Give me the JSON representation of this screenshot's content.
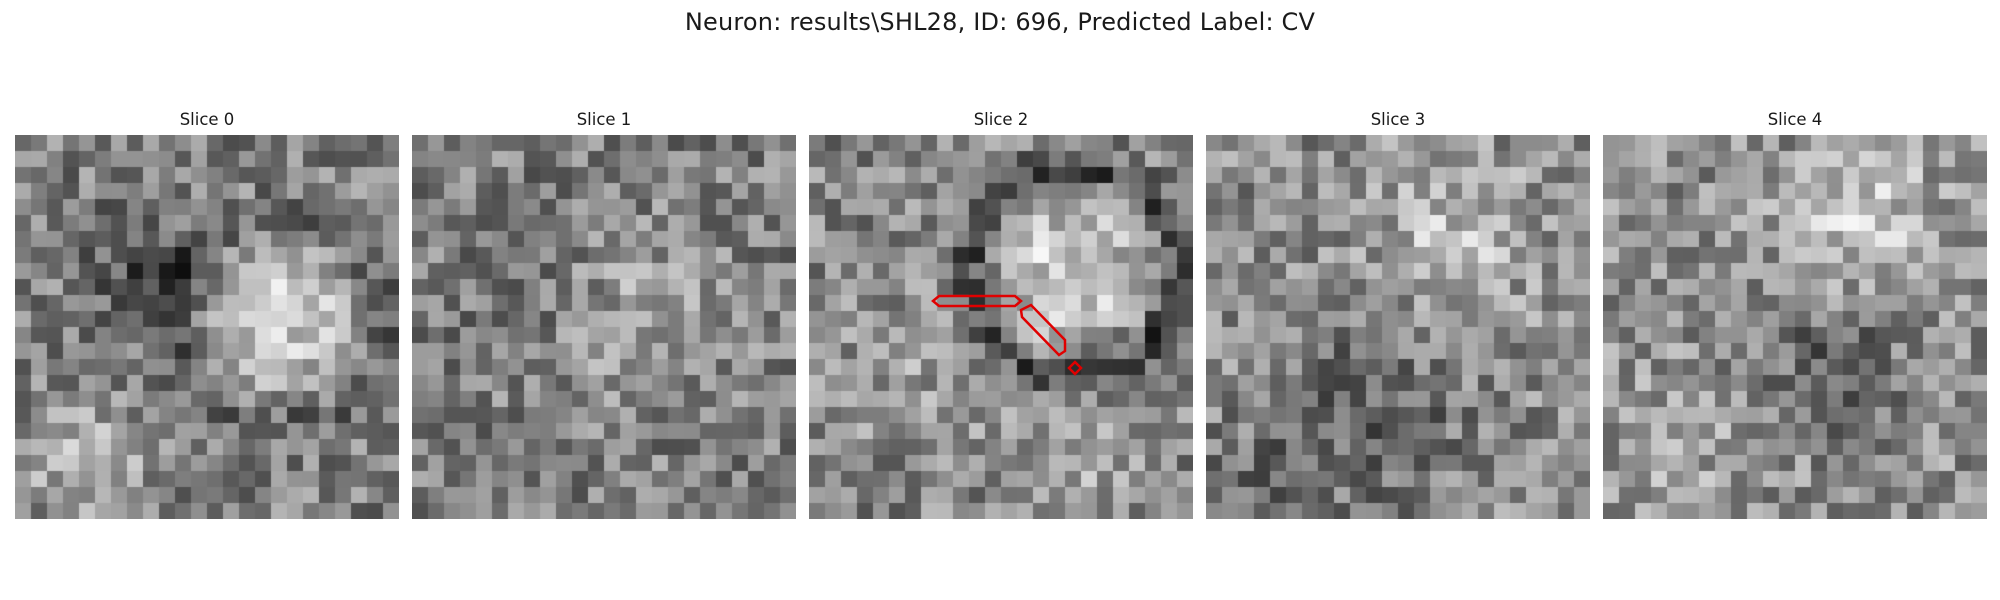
{
  "figure": {
    "suptitle": "Neuron: results\\SHL28, ID: 696, Predicted Label: CV",
    "grid_size": 24,
    "colormap": "gray",
    "overlay_color": "#e00000"
  },
  "panels": [
    {
      "title": "Slice 0",
      "has_contour": false
    },
    {
      "title": "Slice 1",
      "has_contour": false
    },
    {
      "title": "Slice 2",
      "has_contour": true
    },
    {
      "title": "Slice 3",
      "has_contour": false
    },
    {
      "title": "Slice 4",
      "has_contour": false
    }
  ]
}
